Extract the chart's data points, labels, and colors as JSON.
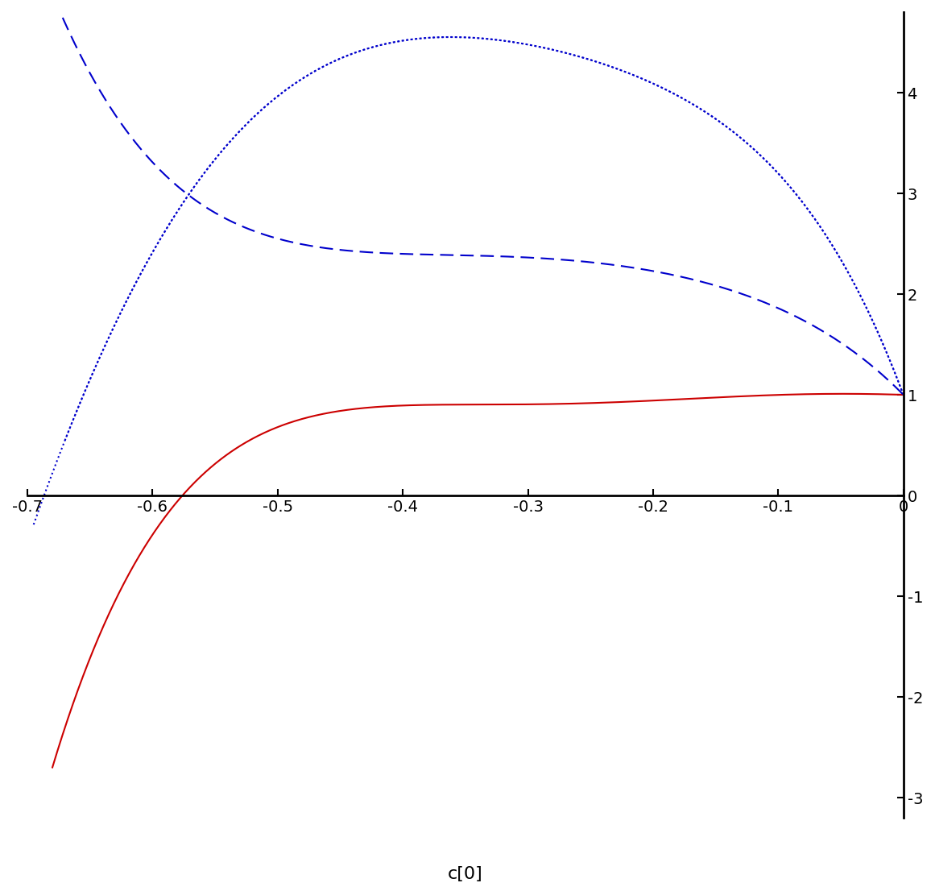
{
  "xlim": [
    -0.7,
    0.0
  ],
  "ylim": [
    -3.2,
    4.8
  ],
  "xlabel": "c[0]",
  "xlabel_fontsize": 16,
  "xticks": [
    -0.7,
    -0.6,
    -0.5,
    -0.4,
    -0.3,
    -0.2,
    -0.1,
    0.0
  ],
  "xtick_labels": [
    "-0.7",
    "-0.6",
    "-0.5",
    "-0.4",
    "-0.3",
    "-0.2",
    "-0.1",
    "0"
  ],
  "yticks": [
    -3,
    -2,
    -1,
    0,
    1,
    2,
    3,
    4
  ],
  "ytick_labels": [
    "-3",
    "-2",
    "-1",
    "0",
    "1",
    "2",
    "3",
    "4"
  ],
  "tick_fontsize": 14,
  "bg_color": "#ffffff",
  "line_solid_color": "#cc0000",
  "line_dashed_color": "#0000cc",
  "line_dotted_color": "#0000cc",
  "linewidth": 1.5
}
